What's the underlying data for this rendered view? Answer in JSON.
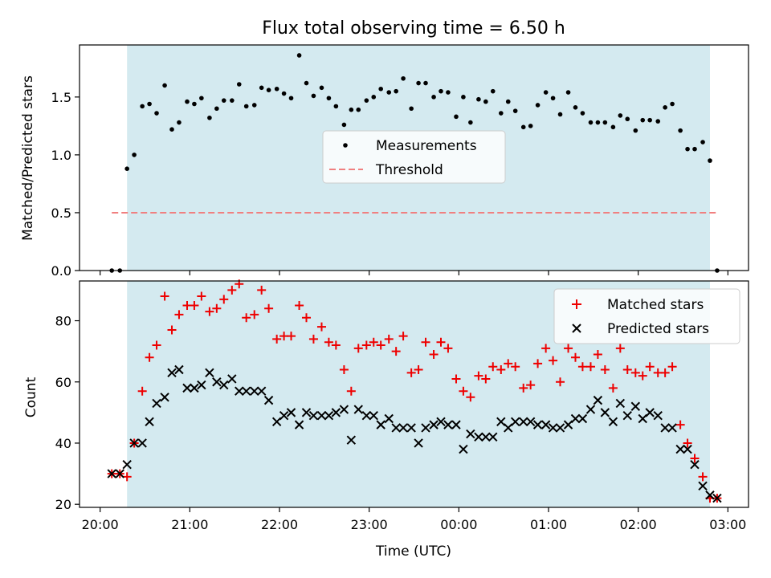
{
  "chart_data": {
    "title": "Flux total observing time = 6.50 h",
    "xlabel": "Time (UTC)",
    "x_ticks": [
      "20:00",
      "21:00",
      "22:00",
      "23:00",
      "00:00",
      "01:00",
      "02:00",
      "03:00"
    ],
    "x_unit": "hours after 20:00 UTC",
    "shaded_span": [
      0.3,
      6.8
    ],
    "shade_color": "#d4eaf0",
    "panels": [
      {
        "type": "scatter",
        "ylabel": "Matched/Predicted stars",
        "ylim": [
          0.0,
          1.95
        ],
        "y_ticks": [
          "0.0",
          "0.5",
          "1.0",
          "1.5"
        ],
        "legend": {
          "placement": "center",
          "entries": [
            "Measurements",
            "Threshold"
          ]
        },
        "threshold": {
          "name": "Threshold",
          "value": 0.5,
          "x_range": [
            0.13,
            6.9
          ],
          "color": "#f08080"
        },
        "series": [
          {
            "name": "Measurements",
            "marker": "dot",
            "color": "#000000",
            "x": [
              0.13,
              0.22,
              0.3,
              0.38,
              0.47,
              0.55,
              0.63,
              0.72,
              0.8,
              0.88,
              0.97,
              1.05,
              1.13,
              1.22,
              1.3,
              1.38,
              1.47,
              1.55,
              1.63,
              1.72,
              1.8,
              1.88,
              1.97,
              2.05,
              2.13,
              2.22,
              2.3,
              2.38,
              2.47,
              2.55,
              2.63,
              2.72,
              2.8,
              2.88,
              2.97,
              3.05,
              3.13,
              3.22,
              3.3,
              3.38,
              3.47,
              3.55,
              3.63,
              3.72,
              3.8,
              3.88,
              3.97,
              4.05,
              4.13,
              4.22,
              4.3,
              4.38,
              4.47,
              4.55,
              4.63,
              4.72,
              4.8,
              4.88,
              4.97,
              5.05,
              5.13,
              5.22,
              5.3,
              5.38,
              5.47,
              5.55,
              5.63,
              5.72,
              5.8,
              5.88,
              5.97,
              6.05,
              6.13,
              6.22,
              6.3,
              6.38,
              6.47,
              6.55,
              6.63,
              6.72,
              6.8,
              6.88
            ],
            "y": [
              0.0,
              0.0,
              0.88,
              1.0,
              1.42,
              1.44,
              1.36,
              1.6,
              1.22,
              1.28,
              1.46,
              1.44,
              1.49,
              1.32,
              1.4,
              1.47,
              1.47,
              1.61,
              1.42,
              1.43,
              1.58,
              1.56,
              1.57,
              1.53,
              1.49,
              1.86,
              1.62,
              1.51,
              1.58,
              1.49,
              1.42,
              1.26,
              1.39,
              1.39,
              1.47,
              1.5,
              1.57,
              1.54,
              1.55,
              1.66,
              1.4,
              1.62,
              1.62,
              1.5,
              1.55,
              1.54,
              1.33,
              1.5,
              1.28,
              1.48,
              1.46,
              1.55,
              1.36,
              1.46,
              1.38,
              1.24,
              1.25,
              1.43,
              1.54,
              1.49,
              1.35,
              1.54,
              1.41,
              1.36,
              1.28,
              1.28,
              1.28,
              1.24,
              1.34,
              1.31,
              1.21,
              1.3,
              1.3,
              1.29,
              1.41,
              1.44,
              1.21,
              1.05,
              1.05,
              1.11,
              0.95,
              0.0
            ]
          }
        ]
      },
      {
        "type": "scatter",
        "ylabel": "Count",
        "ylim": [
          19,
          93
        ],
        "y_ticks": [
          "20",
          "40",
          "60",
          "80"
        ],
        "legend": {
          "placement": "upper right",
          "entries": [
            "Matched stars",
            "Predicted stars"
          ]
        },
        "series": [
          {
            "name": "Matched stars",
            "marker": "plus",
            "color": "#ee0000",
            "x": [
              0.13,
              0.22,
              0.3,
              0.38,
              0.47,
              0.55,
              0.63,
              0.72,
              0.8,
              0.88,
              0.97,
              1.05,
              1.13,
              1.22,
              1.3,
              1.38,
              1.47,
              1.55,
              1.63,
              1.72,
              1.8,
              1.88,
              1.97,
              2.05,
              2.13,
              2.22,
              2.3,
              2.38,
              2.47,
              2.55,
              2.63,
              2.72,
              2.8,
              2.88,
              2.97,
              3.05,
              3.13,
              3.22,
              3.3,
              3.38,
              3.47,
              3.55,
              3.63,
              3.72,
              3.8,
              3.88,
              3.97,
              4.05,
              4.13,
              4.22,
              4.3,
              4.38,
              4.47,
              4.55,
              4.63,
              4.72,
              4.8,
              4.88,
              4.97,
              5.05,
              5.13,
              5.22,
              5.3,
              5.38,
              5.47,
              5.55,
              5.63,
              5.72,
              5.8,
              5.88,
              5.97,
              6.05,
              6.13,
              6.22,
              6.3,
              6.38,
              6.47,
              6.55,
              6.63,
              6.72,
              6.8,
              6.88
            ],
            "y": [
              30,
              30,
              29,
              40,
              57,
              68,
              72,
              88,
              77,
              82,
              85,
              85,
              88,
              83,
              84,
              87,
              90,
              92,
              81,
              82,
              90,
              84,
              74,
              75,
              75,
              85,
              81,
              74,
              78,
              73,
              72,
              64,
              57,
              71,
              72,
              73,
              72,
              74,
              70,
              75,
              63,
              64,
              73,
              69,
              73,
              71,
              61,
              57,
              55,
              62,
              61,
              65,
              64,
              66,
              65,
              58,
              59,
              66,
              71,
              67,
              60,
              71,
              68,
              65,
              65,
              69,
              64,
              58,
              71,
              64,
              63,
              62,
              65,
              63,
              63,
              65,
              46,
              40,
              35,
              29,
              22,
              22
            ]
          },
          {
            "name": "Predicted stars",
            "marker": "x",
            "color": "#000000",
            "x": [
              0.13,
              0.22,
              0.3,
              0.38,
              0.47,
              0.55,
              0.63,
              0.72,
              0.8,
              0.88,
              0.97,
              1.05,
              1.13,
              1.22,
              1.3,
              1.38,
              1.47,
              1.55,
              1.63,
              1.72,
              1.8,
              1.88,
              1.97,
              2.05,
              2.13,
              2.22,
              2.3,
              2.38,
              2.47,
              2.55,
              2.63,
              2.72,
              2.8,
              2.88,
              2.97,
              3.05,
              3.13,
              3.22,
              3.3,
              3.38,
              3.47,
              3.55,
              3.63,
              3.72,
              3.8,
              3.88,
              3.97,
              4.05,
              4.13,
              4.22,
              4.3,
              4.38,
              4.47,
              4.55,
              4.63,
              4.72,
              4.8,
              4.88,
              4.97,
              5.05,
              5.13,
              5.22,
              5.3,
              5.38,
              5.47,
              5.55,
              5.63,
              5.72,
              5.8,
              5.88,
              5.97,
              6.05,
              6.13,
              6.22,
              6.3,
              6.38,
              6.47,
              6.55,
              6.63,
              6.72,
              6.8,
              6.88
            ],
            "y": [
              30,
              30,
              33,
              40,
              40,
              47,
              53,
              55,
              63,
              64,
              58,
              58,
              59,
              63,
              60,
              59,
              61,
              57,
              57,
              57,
              57,
              54,
              47,
              49,
              50,
              46,
              50,
              49,
              49,
              49,
              50,
              51,
              41,
              51,
              49,
              49,
              46,
              48,
              45,
              45,
              45,
              40,
              45,
              46,
              47,
              46,
              46,
              38,
              43,
              42,
              42,
              42,
              47,
              45,
              47,
              47,
              47,
              46,
              46,
              45,
              45,
              46,
              48,
              48,
              51,
              54,
              50,
              47,
              53,
              49,
              52,
              48,
              50,
              49,
              45,
              45,
              38,
              38,
              33,
              26,
              23,
              22
            ]
          }
        ]
      }
    ]
  }
}
